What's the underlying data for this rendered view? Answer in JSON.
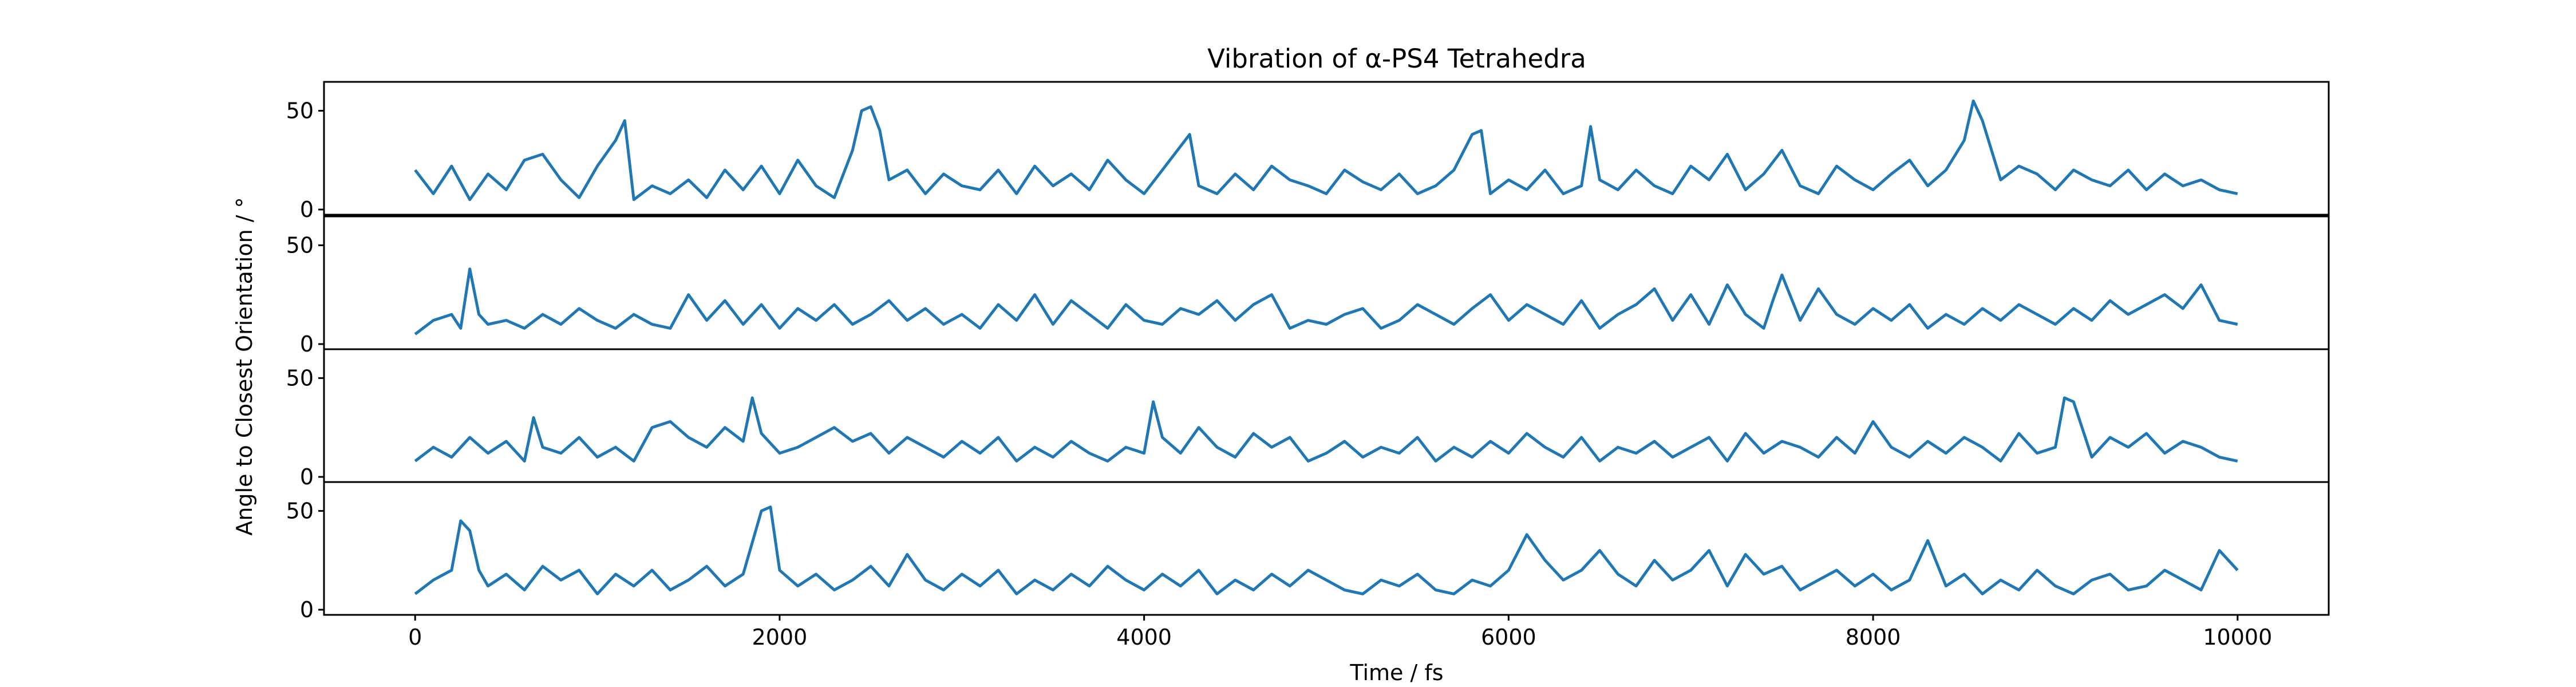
{
  "chart_data": {
    "type": "line",
    "title": "Vibration of α-PS4 Tetrahedra",
    "xlabel": "Time / fs",
    "ylabel": "Angle to Closest Orientation / °",
    "xlim": [
      -500,
      10500
    ],
    "ylim": [
      0,
      62
    ],
    "x_ticks": [
      0,
      2000,
      4000,
      6000,
      8000,
      10000
    ],
    "x_tick_labels": [
      "0",
      "2000",
      "4000",
      "6000",
      "8000",
      "10000"
    ],
    "y_ticks": [
      0,
      50
    ],
    "y_tick_labels": [
      "0",
      "50"
    ],
    "grid": false,
    "line_color": "#1f77b4",
    "series": [
      {
        "x": [
          0,
          100,
          200,
          300,
          400,
          500,
          600,
          700,
          800,
          900,
          1000,
          1100,
          1150,
          1200,
          1300,
          1400,
          1500,
          1600,
          1700,
          1800,
          1900,
          2000,
          2100,
          2200,
          2300,
          2400,
          2450,
          2500,
          2550,
          2600,
          2700,
          2800,
          2900,
          3000,
          3100,
          3200,
          3300,
          3400,
          3500,
          3600,
          3700,
          3800,
          3900,
          4000,
          4100,
          4200,
          4250,
          4300,
          4400,
          4500,
          4600,
          4700,
          4800,
          4900,
          5000,
          5100,
          5200,
          5300,
          5400,
          5500,
          5600,
          5700,
          5800,
          5850,
          5900,
          6000,
          6100,
          6200,
          6300,
          6400,
          6450,
          6500,
          6600,
          6700,
          6800,
          6900,
          7000,
          7100,
          7200,
          7300,
          7400,
          7500,
          7600,
          7700,
          7800,
          7900,
          8000,
          8100,
          8200,
          8300,
          8400,
          8500,
          8550,
          8600,
          8700,
          8800,
          8900,
          9000,
          9100,
          9200,
          9300,
          9400,
          9500,
          9600,
          9700,
          9800,
          9900,
          10000
        ],
        "y": [
          20,
          8,
          22,
          5,
          18,
          10,
          25,
          28,
          15,
          6,
          22,
          35,
          45,
          5,
          12,
          8,
          15,
          6,
          20,
          10,
          22,
          8,
          25,
          12,
          6,
          30,
          50,
          52,
          40,
          15,
          20,
          8,
          18,
          12,
          10,
          20,
          8,
          22,
          12,
          18,
          10,
          25,
          15,
          8,
          20,
          32,
          38,
          12,
          8,
          18,
          10,
          22,
          15,
          12,
          8,
          20,
          14,
          10,
          18,
          8,
          12,
          20,
          38,
          40,
          8,
          15,
          10,
          20,
          8,
          12,
          42,
          15,
          10,
          20,
          12,
          8,
          22,
          15,
          28,
          10,
          18,
          30,
          12,
          8,
          22,
          15,
          10,
          18,
          25,
          12,
          20,
          35,
          55,
          45,
          15,
          22,
          18,
          10,
          20,
          15,
          12,
          20,
          10,
          18,
          12,
          15,
          10,
          8
        ]
      },
      {
        "x": [
          0,
          100,
          200,
          250,
          300,
          350,
          400,
          500,
          600,
          700,
          800,
          900,
          1000,
          1100,
          1200,
          1300,
          1400,
          1500,
          1600,
          1700,
          1800,
          1900,
          2000,
          2100,
          2200,
          2300,
          2400,
          2500,
          2600,
          2700,
          2800,
          2900,
          3000,
          3100,
          3200,
          3300,
          3400,
          3500,
          3600,
          3700,
          3800,
          3900,
          4000,
          4100,
          4200,
          4300,
          4400,
          4500,
          4600,
          4700,
          4800,
          4900,
          5000,
          5100,
          5200,
          5300,
          5400,
          5500,
          5600,
          5700,
          5800,
          5900,
          6000,
          6100,
          6200,
          6300,
          6400,
          6500,
          6600,
          6700,
          6800,
          6900,
          7000,
          7100,
          7200,
          7300,
          7400,
          7450,
          7500,
          7600,
          7700,
          7800,
          7900,
          8000,
          8100,
          8200,
          8300,
          8400,
          8500,
          8600,
          8700,
          8800,
          8900,
          9000,
          9100,
          9200,
          9300,
          9400,
          9500,
          9600,
          9700,
          9800,
          9900,
          10000
        ],
        "y": [
          5,
          12,
          15,
          8,
          38,
          15,
          10,
          12,
          8,
          15,
          10,
          18,
          12,
          8,
          15,
          10,
          8,
          25,
          12,
          22,
          10,
          20,
          8,
          18,
          12,
          20,
          10,
          15,
          22,
          12,
          18,
          10,
          15,
          8,
          20,
          12,
          25,
          10,
          22,
          15,
          8,
          20,
          12,
          10,
          18,
          15,
          22,
          12,
          20,
          25,
          8,
          12,
          10,
          15,
          18,
          8,
          12,
          20,
          15,
          10,
          18,
          25,
          12,
          20,
          15,
          10,
          22,
          8,
          15,
          20,
          28,
          12,
          25,
          10,
          30,
          15,
          8,
          22,
          35,
          12,
          28,
          15,
          10,
          18,
          12,
          20,
          8,
          15,
          10,
          18,
          12,
          20,
          15,
          10,
          18,
          12,
          22,
          15,
          20,
          25,
          18,
          30,
          12,
          10
        ]
      },
      {
        "x": [
          0,
          100,
          200,
          300,
          400,
          500,
          600,
          650,
          700,
          800,
          900,
          1000,
          1100,
          1200,
          1300,
          1400,
          1500,
          1600,
          1700,
          1800,
          1850,
          1900,
          2000,
          2100,
          2200,
          2300,
          2400,
          2500,
          2600,
          2700,
          2800,
          2900,
          3000,
          3100,
          3200,
          3300,
          3400,
          3500,
          3600,
          3700,
          3800,
          3900,
          4000,
          4050,
          4100,
          4200,
          4300,
          4400,
          4500,
          4600,
          4700,
          4800,
          4900,
          5000,
          5100,
          5200,
          5300,
          5400,
          5500,
          5600,
          5700,
          5800,
          5900,
          6000,
          6100,
          6200,
          6300,
          6400,
          6500,
          6600,
          6700,
          6800,
          6900,
          7000,
          7100,
          7200,
          7300,
          7400,
          7500,
          7600,
          7700,
          7800,
          7900,
          8000,
          8100,
          8200,
          8300,
          8400,
          8500,
          8600,
          8700,
          8800,
          8900,
          9000,
          9050,
          9100,
          9200,
          9300,
          9400,
          9500,
          9600,
          9700,
          9800,
          9900,
          10000
        ],
        "y": [
          8,
          15,
          10,
          20,
          12,
          18,
          8,
          30,
          15,
          12,
          20,
          10,
          15,
          8,
          25,
          28,
          20,
          15,
          25,
          18,
          40,
          22,
          12,
          15,
          20,
          25,
          18,
          22,
          12,
          20,
          15,
          10,
          18,
          12,
          20,
          8,
          15,
          10,
          18,
          12,
          8,
          15,
          12,
          38,
          20,
          12,
          25,
          15,
          10,
          22,
          15,
          20,
          8,
          12,
          18,
          10,
          15,
          12,
          20,
          8,
          15,
          10,
          18,
          12,
          22,
          15,
          10,
          20,
          8,
          15,
          12,
          18,
          10,
          15,
          20,
          8,
          22,
          12,
          18,
          15,
          10,
          20,
          12,
          28,
          15,
          10,
          18,
          12,
          20,
          15,
          8,
          22,
          12,
          15,
          40,
          38,
          10,
          20,
          15,
          22,
          12,
          18,
          15,
          10,
          8
        ]
      },
      {
        "x": [
          0,
          100,
          200,
          250,
          300,
          350,
          400,
          500,
          600,
          700,
          800,
          900,
          1000,
          1100,
          1200,
          1300,
          1400,
          1500,
          1600,
          1700,
          1800,
          1900,
          1950,
          2000,
          2100,
          2200,
          2300,
          2400,
          2500,
          2600,
          2700,
          2800,
          2900,
          3000,
          3100,
          3200,
          3300,
          3400,
          3500,
          3600,
          3700,
          3800,
          3900,
          4000,
          4100,
          4200,
          4300,
          4400,
          4500,
          4600,
          4700,
          4800,
          4900,
          5000,
          5100,
          5200,
          5300,
          5400,
          5500,
          5600,
          5700,
          5800,
          5900,
          6000,
          6100,
          6200,
          6300,
          6400,
          6500,
          6600,
          6700,
          6800,
          6900,
          7000,
          7100,
          7200,
          7300,
          7400,
          7500,
          7600,
          7700,
          7800,
          7900,
          8000,
          8100,
          8200,
          8300,
          8400,
          8500,
          8600,
          8700,
          8800,
          8900,
          9000,
          9100,
          9200,
          9300,
          9400,
          9500,
          9600,
          9700,
          9800,
          9900,
          10000
        ],
        "y": [
          8,
          15,
          20,
          45,
          40,
          20,
          12,
          18,
          10,
          22,
          15,
          20,
          8,
          18,
          12,
          20,
          10,
          15,
          22,
          12,
          18,
          50,
          52,
          20,
          12,
          18,
          10,
          15,
          22,
          12,
          28,
          15,
          10,
          18,
          12,
          20,
          8,
          15,
          10,
          18,
          12,
          22,
          15,
          10,
          18,
          12,
          20,
          8,
          15,
          10,
          18,
          12,
          20,
          15,
          10,
          8,
          15,
          12,
          18,
          10,
          8,
          15,
          12,
          20,
          38,
          25,
          15,
          20,
          30,
          18,
          12,
          25,
          15,
          20,
          30,
          12,
          28,
          18,
          22,
          10,
          15,
          20,
          12,
          18,
          10,
          15,
          35,
          12,
          18,
          8,
          15,
          10,
          20,
          12,
          8,
          15,
          18,
          10,
          12,
          20,
          15,
          10,
          30,
          20
        ]
      }
    ]
  }
}
